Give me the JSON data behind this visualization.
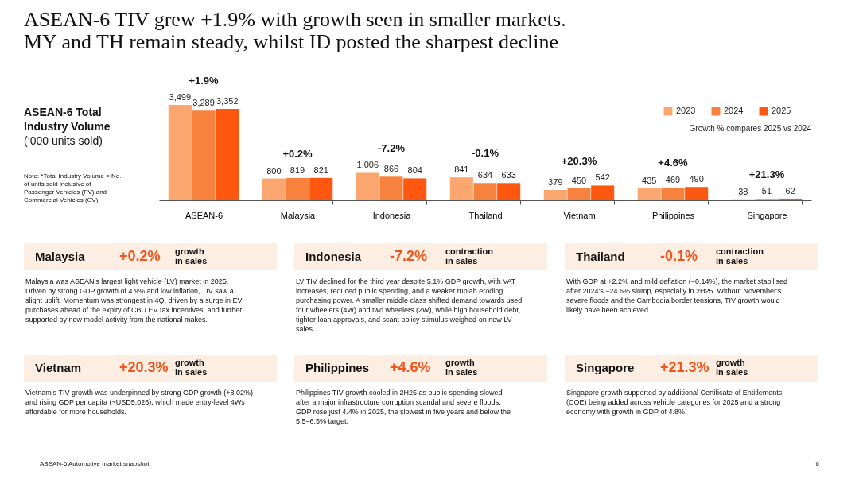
{
  "chart_data": [
    {
      "type": "bar",
      "title": "ASEAN-6 TIV grew +1.9% with growth seen in smaller markets.\nMY and TH remain steady, whilst ID posted the sharpest decline",
      "subtitle": "ASEAN-6 Total\nIndustry Volume",
      "ylabel": "(‘000 units sold)",
      "categories": [
        "ASEAN-6",
        "Malaysia",
        "Indonesia",
        "Thailand",
        "Vietnam",
        "Philippines",
        "Singapore"
      ],
      "series": [
        {
          "name": "2023",
          "color": "#fba66e",
          "values": [
            3499,
            800,
            1006,
            841,
            379,
            435,
            38
          ],
          "value_labels": [
            "3,499",
            "800",
            "1,006",
            "841",
            "379",
            "435",
            "38"
          ]
        },
        {
          "name": "2024",
          "color": "#f7823e",
          "values": [
            3289,
            819,
            866,
            634,
            450,
            469,
            51
          ],
          "value_labels": [
            "3,289",
            "819",
            "866",
            "634",
            "450",
            "469",
            "51"
          ]
        },
        {
          "name": "2025",
          "color": "#fd5710",
          "values": [
            3352,
            821,
            804,
            633,
            542,
            490,
            62
          ],
          "value_labels": [
            "3,352",
            "821",
            "804",
            "633",
            "542",
            "490",
            "62"
          ]
        }
      ],
      "legend": "top right",
      "annotations": [
        "+1.9%",
        "+0.2%",
        "-7.2%",
        "-0.1%",
        "+20.3%",
        "+4.6%",
        "+21.3%",
        "Growth % compares 2025 vs 2024",
        "Note: *Total Industry Volume = No. of units sold inclusive of Passenger Vehicles (PV) and Commercial Vehicles (CV)"
      ]
    },
    {
      "type": "other",
      "annotations": [
        "Malaysia",
        "+0.2%",
        "growth\nin sales",
        "Malaysia was ASEAN's largest light vehicle (LV) market in 2025. Driven by strong GDP growth of 4.9% and low inflation, TIV saw a slight uplift. Momentum was strongest in 4Q, driven by a surge in EV purchases ahead of the expiry of CBU EV tax incentives, and further supported by new model activity from the national makes.",
        "Indonesia",
        "-7.2%",
        "contraction\nin sales",
        "LV TIV declined for the third year despite 5.1% GDP growth, with VAT increases, reduced public spending, and a weaker rupiah eroding purchasing power. A smaller middle class shifted demand towards used four wheelers (4W) and two wheelers (2W), while high household debt, tighter loan approvals, and scant policy stimulus weighed on new LV sales.",
        "Thailand",
        "-0.1%",
        "contraction\nin sales",
        "With GDP at +2.2% and mild deflation (−0.14%), the market stabilised after 2024's −24.6% slump, especially in 2H25. Without November's severe floods and the Cambodia border tensions, TIV growth would likely have been achieved.",
        "Vietnam",
        "+20.3%",
        "growth\nin sales",
        "Vietnam's TIV growth was underpinned by strong GDP growth (+8.02%) and rising GDP per capita (~USD5,026), which made entry-level 4Ws affordable for more households.",
        "Philippines",
        "+4.6%",
        "growth\nin sales",
        "Philippines TIV growth cooled in 2H25 as public spending slowed after a major infrastructure corruption scandal and severe floods. GDP rose just 4.4% in 2025, the slowest in five years and below the 5.5–6.5% target.",
        "Singapore",
        "+21.3%",
        "growth\nin sales",
        "Singapore growth supported by additional Certificate of Entitlements (COE) being added across vehicle categories for 2025 and a strong economy with growth in GDP of 4.8%.",
        "ASEAN-6 Automotive market snapshot",
        "6"
      ]
    }
  ]
}
